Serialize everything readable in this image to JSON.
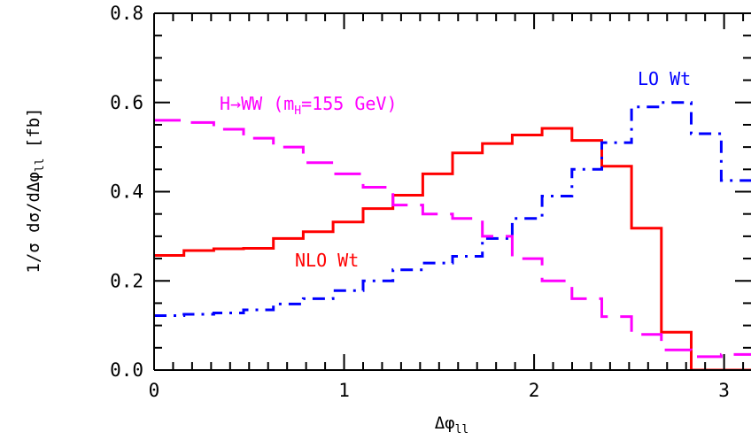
{
  "chart_data": {
    "type": "line",
    "title": "",
    "xlabel": "Δφ",
    "xlabel_sub": "ll",
    "ylabel": "1/σ dσ/dΔφ",
    "ylabel_sub": "ll",
    "ylabel_unit": "[fb]",
    "xlim": [
      0,
      3.1416
    ],
    "ylim": [
      0,
      0.8
    ],
    "x_ticks": [
      0,
      1,
      2,
      3
    ],
    "x_tick_labels": [
      "0",
      "1",
      "2",
      "3"
    ],
    "y_ticks": [
      0,
      0.2,
      0.4,
      0.6,
      0.8
    ],
    "y_tick_labels": [
      "0.0",
      "0.2",
      "0.4",
      "0.6",
      "0.8"
    ],
    "bin_edges": [
      0,
      0.157,
      0.314,
      0.471,
      0.628,
      0.785,
      0.942,
      1.1,
      1.257,
      1.414,
      1.571,
      1.728,
      1.885,
      2.042,
      2.199,
      2.356,
      2.513,
      2.67,
      2.827,
      2.985,
      3.142
    ],
    "series": [
      {
        "name": "NLO Wt",
        "color": "#ff0000",
        "style": "solid",
        "values": [
          0.257,
          0.268,
          0.272,
          0.273,
          0.295,
          0.31,
          0.332,
          0.362,
          0.392,
          0.44,
          0.487,
          0.508,
          0.527,
          0.542,
          0.515,
          0.457,
          0.318,
          0.085,
          0.0,
          0.0
        ]
      },
      {
        "name": "LO Wt",
        "color": "#0000ff",
        "style": "dash-dot",
        "values": [
          0.122,
          0.125,
          0.128,
          0.135,
          0.148,
          0.16,
          0.178,
          0.2,
          0.225,
          0.24,
          0.255,
          0.295,
          0.34,
          0.39,
          0.45,
          0.51,
          0.59,
          0.6,
          0.53,
          0.425
        ]
      },
      {
        "name": "H→WW (m",
        "name_sub": "H",
        "name_tail": "=155 GeV)",
        "color": "#ff00ff",
        "style": "dashed",
        "values": [
          0.56,
          0.555,
          0.54,
          0.52,
          0.5,
          0.465,
          0.44,
          0.41,
          0.37,
          0.35,
          0.34,
          0.3,
          0.25,
          0.2,
          0.16,
          0.12,
          0.08,
          0.045,
          0.03,
          0.035
        ]
      }
    ]
  }
}
